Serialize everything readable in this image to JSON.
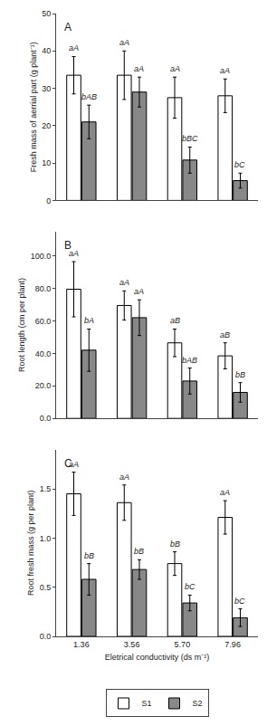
{
  "chart_data": [
    {
      "type": "bar",
      "title": "A",
      "ylabel": "Fresh mass of aerrial part (g plant⁻¹)",
      "categories": [
        "1.36",
        "3.56",
        "5.70",
        "7.96"
      ],
      "tick_labels": "y",
      "grid": false,
      "ylim": [
        0,
        50
      ],
      "yticks": [
        0,
        10,
        20,
        30,
        40,
        50
      ],
      "series": [
        {
          "name": "S1",
          "color": "#ffffff",
          "values": [
            33.5,
            33.5,
            27.5,
            28.0
          ],
          "errors": [
            5.0,
            6.5,
            5.5,
            4.5
          ],
          "annotations": [
            "aA",
            "aA",
            "aA",
            "aA"
          ]
        },
        {
          "name": "S2",
          "color": "#888888",
          "values": [
            21.0,
            29.0,
            10.8,
            5.3
          ],
          "errors": [
            4.5,
            4.0,
            3.5,
            2.0
          ],
          "annotations": [
            "bAB",
            "aA",
            "bBC",
            "bC"
          ]
        }
      ]
    },
    {
      "type": "bar",
      "title": "B",
      "ylabel": "Root length (cm per plant)",
      "categories": [
        "1.36",
        "3.56",
        "5.70",
        "7.96"
      ],
      "tick_labels": "y",
      "grid": false,
      "ylim": [
        0,
        115
      ],
      "yticks": [
        {
          "value": 0,
          "label": "0.0"
        },
        {
          "value": 20,
          "label": "20.0"
        },
        {
          "value": 40,
          "label": "40.0"
        },
        {
          "value": 60,
          "label": "60.0"
        },
        {
          "value": 80,
          "label": "80.0"
        },
        {
          "value": 100,
          "label": "100.0"
        }
      ],
      "series": [
        {
          "name": "S1",
          "color": "#ffffff",
          "values": [
            79.5,
            69.5,
            46.5,
            38.5
          ],
          "errors": [
            17.0,
            9.0,
            8.5,
            8.0
          ],
          "annotations": [
            "aA",
            "aA",
            "aB",
            "aB"
          ]
        },
        {
          "name": "S2",
          "color": "#888888",
          "values": [
            42.0,
            62.0,
            23.0,
            16.0
          ],
          "errors": [
            13.0,
            11.0,
            8.0,
            6.0
          ],
          "annotations": [
            "bA",
            "aA",
            "bAB",
            "bB"
          ]
        }
      ]
    },
    {
      "type": "bar",
      "title": "C",
      "ylabel": "Root fresh mass (g per plant)",
      "xlabel": "Eletrical conductivity (ds m⁻¹)",
      "categories": [
        "1.36",
        "3.56",
        "5.70",
        "7.96"
      ],
      "grid": false,
      "legend": "bottom",
      "ylim": [
        0,
        1.9
      ],
      "yticks": [
        {
          "value": 0,
          "label": "0.0"
        },
        0.5,
        {
          "value": 1,
          "label": "1.0"
        },
        1.5
      ],
      "series": [
        {
          "name": "S1",
          "color": "#ffffff",
          "values": [
            1.45,
            1.36,
            0.74,
            1.21
          ],
          "errors": [
            0.22,
            0.18,
            0.12,
            0.17
          ],
          "annotations": [
            "aA",
            "aA",
            "bB",
            "aA"
          ]
        },
        {
          "name": "S2",
          "color": "#888888",
          "values": [
            0.58,
            0.68,
            0.34,
            0.19
          ],
          "errors": [
            0.16,
            0.1,
            0.08,
            0.09
          ],
          "annotations": [
            "bB",
            "bB",
            "bC",
            "bC"
          ]
        }
      ]
    }
  ]
}
